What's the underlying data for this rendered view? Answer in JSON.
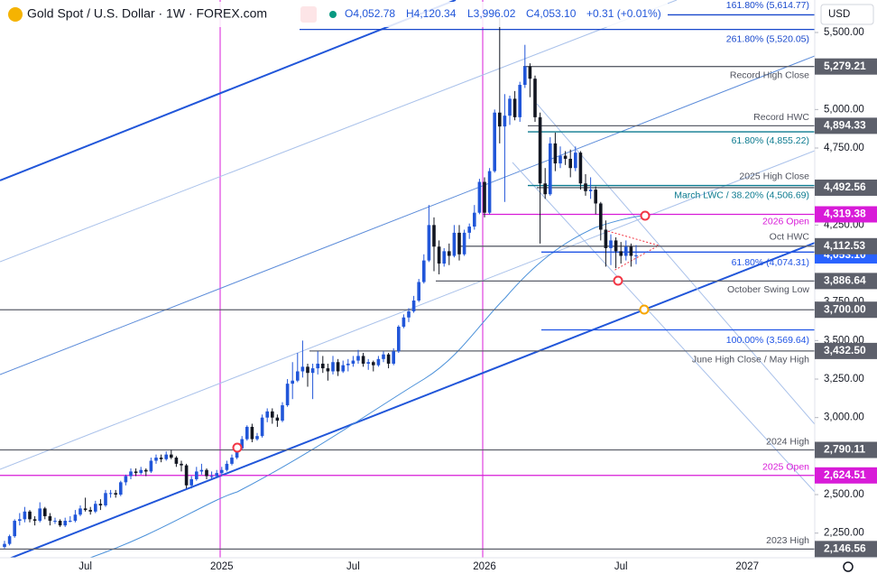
{
  "chart_data": {
    "type": "candlestick",
    "title": "Gold Spot / U.S. Dollar · 1W · FOREX.com",
    "ohlc_legend": [
      "O4,052.78",
      "H4,120.34",
      "L3,996.02",
      "C4,053.10",
      "+0.31 (+0.01%)"
    ],
    "currency": "USD",
    "up_color": "#2156d9",
    "down_color": "#131722",
    "ylim": [
      2090,
      5711
    ],
    "yticks": [
      {
        "value": 5500,
        "label": "5,500.00"
      },
      {
        "value": 5000,
        "label": "5,000.00"
      },
      {
        "value": 4750,
        "label": "4,750.00"
      },
      {
        "value": 4250,
        "label": "4,250.00"
      },
      {
        "value": 3750,
        "label": "3,750.00"
      },
      {
        "value": 3500,
        "label": "3,500.00"
      },
      {
        "value": 3250,
        "label": "3,250.00"
      },
      {
        "value": 3000,
        "label": "3,000.00"
      },
      {
        "value": 2500,
        "label": "2,500.00"
      },
      {
        "value": 2250,
        "label": "2,250.00"
      }
    ],
    "last_price_label": "4,053.10",
    "last_price_color": "#2962ff",
    "levels": [
      {
        "value": 5614.77,
        "note": "161.80% (5,614.77)",
        "color": "#1848cc"
      },
      {
        "value": 5520.05,
        "note": "261.80% (5,520.05)",
        "color": "#1848cc"
      },
      {
        "value": 5279.21,
        "tag": "5,279.21",
        "note": "Record High Close",
        "color": "#5d606b"
      },
      {
        "value": 4894.33,
        "tag": "4,894.33",
        "note": "Record HWC",
        "color": "#5d606b"
      },
      {
        "value": 4855.22,
        "note": "61.80% (4,855.22)",
        "color": "#0b7a8f"
      },
      {
        "value": 4492.56,
        "tag": "4,492.56",
        "note": "2025 High Close",
        "color": "#5d606b"
      },
      {
        "value": 4506.69,
        "note": "March LWC / 38.20% (4,506.69)",
        "color": "#0b7a8f"
      },
      {
        "value": 4319.38,
        "tag": "4,319.38",
        "note": "2026 Open",
        "color": "#d81bd8"
      },
      {
        "value": 4112.53,
        "tag": "4,112.53",
        "note": "Oct HWC",
        "color": "#5d606b"
      },
      {
        "value": 4074.31,
        "note": "61.80% (4,074.31)",
        "color": "#1e53e5"
      },
      {
        "value": 3886.64,
        "tag": "3,886.64",
        "note": "October Swing Low",
        "color": "#5d606b"
      },
      {
        "value": 3700.0,
        "tag": "3,700.00",
        "color": "#5d606b"
      },
      {
        "value": 3569.64,
        "note": "100.00% (3,569.64)",
        "color": "#1e53e5"
      },
      {
        "value": 3432.5,
        "tag": "3,432.50",
        "note": "June High Close / May High",
        "color": "#5d606b"
      },
      {
        "value": 2790.11,
        "tag": "2,790.11",
        "note": "2024 High",
        "color": "#5d606b"
      },
      {
        "value": 2624.51,
        "tag": "2,624.51",
        "note": "2025 Open",
        "color": "#d81bd8"
      },
      {
        "value": 2146.56,
        "tag": "2,146.56",
        "note": "2023 High",
        "color": "#5d606b"
      }
    ],
    "categories": [
      null,
      null,
      null,
      null,
      null,
      null,
      null,
      null,
      null,
      null,
      null,
      null,
      null,
      null,
      null,
      null,
      "Jul",
      null,
      null,
      null,
      null,
      null,
      null,
      null,
      null,
      null,
      null,
      null,
      null,
      null,
      null,
      null,
      null,
      null,
      null,
      null,
      null,
      null,
      null,
      null,
      null,
      null,
      null,
      "2025",
      null,
      null,
      null,
      null,
      null,
      null,
      null,
      null,
      null,
      null,
      null,
      null,
      null,
      null,
      null,
      null,
      null,
      null,
      null,
      null,
      null,
      null,
      null,
      null,
      null,
      "Jul",
      null,
      null,
      null,
      null,
      null,
      null,
      null,
      null,
      null,
      null,
      null,
      null,
      null,
      null,
      null,
      null,
      null,
      null,
      null,
      null,
      null,
      null,
      null,
      null,
      null,
      "2026",
      null,
      null,
      null,
      null,
      null,
      null,
      null,
      null,
      null,
      null,
      null,
      null,
      null,
      null,
      null,
      null,
      null,
      null,
      null,
      null,
      null,
      null,
      null,
      null,
      null,
      null,
      "Jul",
      null,
      null,
      null,
      null,
      null,
      null,
      null,
      null,
      null,
      null,
      null,
      null,
      null,
      null,
      null,
      null,
      null,
      null,
      null,
      null,
      null,
      null,
      null,
      null,
      "2027"
    ],
    "candles": [
      [
        2160,
        2200,
        2150,
        2180
      ],
      [
        2180,
        2240,
        2170,
        2230
      ],
      [
        2230,
        2340,
        2220,
        2330
      ],
      [
        2330,
        2380,
        2300,
        2340
      ],
      [
        2340,
        2420,
        2320,
        2390
      ],
      [
        2390,
        2400,
        2320,
        2340
      ],
      [
        2340,
        2360,
        2300,
        2330
      ],
      [
        2330,
        2450,
        2320,
        2410
      ],
      [
        2410,
        2420,
        2340,
        2360
      ],
      [
        2360,
        2380,
        2300,
        2330
      ],
      [
        2330,
        2350,
        2310,
        2330
      ],
      [
        2330,
        2340,
        2290,
        2300
      ],
      [
        2300,
        2350,
        2290,
        2330
      ],
      [
        2330,
        2360,
        2320,
        2330
      ],
      [
        2330,
        2400,
        2320,
        2370
      ],
      [
        2370,
        2430,
        2360,
        2410
      ],
      [
        2410,
        2480,
        2390,
        2400
      ],
      [
        2400,
        2420,
        2370,
        2390
      ],
      [
        2390,
        2460,
        2380,
        2440
      ],
      [
        2440,
        2470,
        2400,
        2430
      ],
      [
        2430,
        2530,
        2420,
        2510
      ],
      [
        2510,
        2530,
        2480,
        2510
      ],
      [
        2510,
        2530,
        2480,
        2500
      ],
      [
        2500,
        2590,
        2490,
        2580
      ],
      [
        2580,
        2630,
        2560,
        2620
      ],
      [
        2620,
        2670,
        2600,
        2650
      ],
      [
        2650,
        2670,
        2620,
        2640
      ],
      [
        2640,
        2680,
        2630,
        2660
      ],
      [
        2660,
        2670,
        2620,
        2650
      ],
      [
        2650,
        2740,
        2640,
        2720
      ],
      [
        2720,
        2760,
        2700,
        2740
      ],
      [
        2740,
        2760,
        2710,
        2730
      ],
      [
        2730,
        2780,
        2720,
        2760
      ],
      [
        2760,
        2790,
        2730,
        2740
      ],
      [
        2740,
        2750,
        2680,
        2700
      ],
      [
        2700,
        2720,
        2650,
        2690
      ],
      [
        2690,
        2700,
        2540,
        2560
      ],
      [
        2560,
        2620,
        2540,
        2600
      ],
      [
        2600,
        2680,
        2590,
        2650
      ],
      [
        2650,
        2700,
        2630,
        2660
      ],
      [
        2660,
        2670,
        2600,
        2620
      ],
      [
        2620,
        2650,
        2600,
        2620
      ],
      [
        2620,
        2660,
        2610,
        2640
      ],
      [
        2640,
        2680,
        2620,
        2660
      ],
      [
        2660,
        2720,
        2650,
        2700
      ],
      [
        2700,
        2760,
        2690,
        2740
      ],
      [
        2740,
        2820,
        2730,
        2800
      ],
      [
        2800,
        2880,
        2790,
        2860
      ],
      [
        2860,
        2950,
        2850,
        2940
      ],
      [
        2940,
        2960,
        2840,
        2860
      ],
      [
        2860,
        2900,
        2850,
        2880
      ],
      [
        2880,
        3020,
        2870,
        3000
      ],
      [
        3000,
        3060,
        2970,
        3040
      ],
      [
        3040,
        3060,
        2960,
        3000
      ],
      [
        3000,
        3020,
        2940,
        2980
      ],
      [
        2980,
        3100,
        2970,
        3080
      ],
      [
        3080,
        3250,
        3070,
        3220
      ],
      [
        3220,
        3360,
        3120,
        3240
      ],
      [
        3240,
        3420,
        3230,
        3300
      ],
      [
        3300,
        3500,
        3260,
        3330
      ],
      [
        3330,
        3350,
        3200,
        3290
      ],
      [
        3290,
        3350,
        3120,
        3320
      ],
      [
        3320,
        3430,
        3280,
        3350
      ],
      [
        3350,
        3400,
        3290,
        3320
      ],
      [
        3320,
        3350,
        3240,
        3300
      ],
      [
        3300,
        3400,
        3280,
        3360
      ],
      [
        3360,
        3380,
        3270,
        3300
      ],
      [
        3300,
        3370,
        3290,
        3340
      ],
      [
        3340,
        3380,
        3300,
        3350
      ],
      [
        3350,
        3400,
        3330,
        3370
      ],
      [
        3370,
        3440,
        3350,
        3400
      ],
      [
        3400,
        3420,
        3330,
        3350
      ],
      [
        3350,
        3380,
        3310,
        3360
      ],
      [
        3360,
        3370,
        3300,
        3340
      ],
      [
        3340,
        3400,
        3330,
        3380
      ],
      [
        3380,
        3430,
        3360,
        3410
      ],
      [
        3410,
        3420,
        3320,
        3350
      ],
      [
        3350,
        3450,
        3340,
        3430
      ],
      [
        3430,
        3600,
        3420,
        3590
      ],
      [
        3590,
        3670,
        3580,
        3650
      ],
      [
        3650,
        3710,
        3620,
        3690
      ],
      [
        3690,
        3790,
        3680,
        3760
      ],
      [
        3760,
        3900,
        3750,
        3880
      ],
      [
        3880,
        4060,
        3870,
        4020
      ],
      [
        4020,
        4380,
        4010,
        4250
      ],
      [
        4250,
        4300,
        3950,
        4110
      ],
      [
        4110,
        4150,
        3930,
        4000
      ],
      [
        4000,
        4100,
        3980,
        4080
      ],
      [
        4080,
        4130,
        3990,
        4050
      ],
      [
        4050,
        4250,
        4040,
        4200
      ],
      [
        4200,
        4250,
        4020,
        4060
      ],
      [
        4060,
        4220,
        4050,
        4200
      ],
      [
        4200,
        4260,
        4160,
        4240
      ],
      [
        4240,
        4380,
        4220,
        4330
      ],
      [
        4330,
        4550,
        4320,
        4530
      ],
      [
        4530,
        4560,
        4300,
        4330
      ],
      [
        4330,
        4620,
        4320,
        4600
      ],
      [
        4600,
        5000,
        4590,
        4980
      ],
      [
        4980,
        5598,
        4780,
        4890
      ],
      [
        4890,
        5100,
        4400,
        4960
      ],
      [
        4960,
        5090,
        4900,
        5070
      ],
      [
        5070,
        5120,
        4930,
        4950
      ],
      [
        4950,
        5180,
        4920,
        5160
      ],
      [
        5160,
        5420,
        5140,
        5280
      ],
      [
        5280,
        5300,
        5080,
        5200
      ],
      [
        5200,
        5220,
        4920,
        4950
      ],
      [
        4950,
        4980,
        4130,
        4520
      ],
      [
        4520,
        4620,
        4420,
        4450
      ],
      [
        4450,
        4820,
        4440,
        4780
      ],
      [
        4780,
        4850,
        4600,
        4650
      ],
      [
        4650,
        4760,
        4620,
        4700
      ],
      [
        4700,
        4730,
        4640,
        4680
      ],
      [
        4680,
        4740,
        4560,
        4620
      ],
      [
        4620,
        4760,
        4600,
        4720
      ],
      [
        4720,
        4730,
        4480,
        4520
      ],
      [
        4520,
        4580,
        4440,
        4470
      ],
      [
        4470,
        4560,
        4420,
        4480
      ],
      [
        4480,
        4500,
        4320,
        4390
      ],
      [
        4390,
        4400,
        4150,
        4220
      ],
      [
        4220,
        4280,
        3980,
        4100
      ],
      [
        4100,
        4190,
        3990,
        4150
      ],
      [
        4150,
        4170,
        3970,
        4080
      ],
      [
        4080,
        4140,
        4000,
        4050
      ],
      [
        4050,
        4150,
        4020,
        4110
      ],
      [
        4110,
        4130,
        3980,
        4050
      ],
      [
        4052.78,
        4120.34,
        3996.02,
        4053.1
      ],
      null,
      null,
      null,
      null,
      null,
      null,
      null,
      null,
      null,
      null,
      null,
      null,
      null,
      null,
      null,
      null,
      null,
      null,
      null,
      null,
      null,
      null
    ]
  }
}
